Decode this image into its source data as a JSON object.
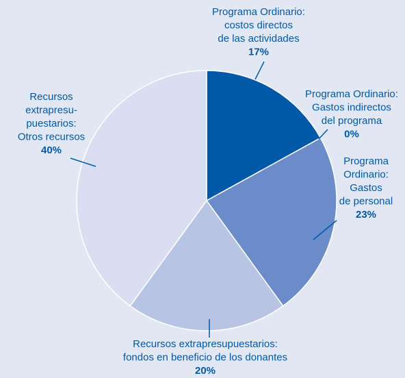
{
  "chart_data": {
    "type": "pie",
    "categories": [
      [
        "Programa Ordinario:",
        "costos directos",
        "de las actividades"
      ],
      [
        "Programa Ordinario:",
        "Gastos indirectos",
        "del programa"
      ],
      [
        "Programa",
        "Ordinario:",
        "Gastos",
        "de personal"
      ],
      [
        "Recursos extrapresupuestarios:",
        "fondos en beneficio de los donantes"
      ],
      [
        "Recursos",
        "extrapresu-",
        "puestarios:",
        "Otros recursos"
      ]
    ],
    "values": [
      17,
      0,
      23,
      20,
      40
    ],
    "value_labels": [
      "17%",
      "0%",
      "23%",
      "20%",
      "40%"
    ],
    "colors": [
      "#0058a8",
      "#3f6fb8",
      "#6b8cc8",
      "#b8c4e3",
      "#d9dff0"
    ]
  }
}
